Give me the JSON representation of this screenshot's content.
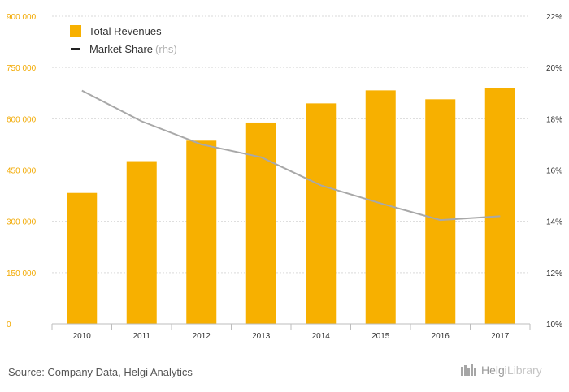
{
  "chart_data": {
    "type": "bar",
    "categories": [
      "2010",
      "2011",
      "2012",
      "2013",
      "2014",
      "2015",
      "2016",
      "2017"
    ],
    "series": [
      {
        "name": "Total Revenues",
        "type": "bar",
        "axis": "left",
        "color": "#f7b000",
        "values": [
          383000,
          476000,
          536000,
          589000,
          645000,
          683000,
          657000,
          690000
        ]
      },
      {
        "name": "Market Share",
        "type": "line",
        "axis": "right",
        "color": "#a8a8a8",
        "values": [
          19.1,
          17.9,
          17.0,
          16.5,
          15.4,
          14.7,
          14.05,
          14.2
        ]
      }
    ],
    "y_left": {
      "ylim": [
        0,
        900000
      ],
      "ticks": [
        "900 000",
        "750 000",
        "600 000",
        "450 000",
        "300 000",
        "150 000",
        "0"
      ]
    },
    "y_right": {
      "ylim": [
        10,
        22
      ],
      "ticks": [
        "22%",
        "20%",
        "18%",
        "16%",
        "14%",
        "12%",
        "10%"
      ]
    },
    "left_tick_color": "#f2a900",
    "grid": "horizontal-dashed",
    "legend_position": "top-left"
  },
  "legend": {
    "bar_label": "Total Revenues",
    "line_label": "Market Share",
    "line_suffix": "(rhs)"
  },
  "footer": {
    "source": "Source: Company Data, Helgi Analytics",
    "brand_a": "Helgi",
    "brand_b": "Library"
  }
}
